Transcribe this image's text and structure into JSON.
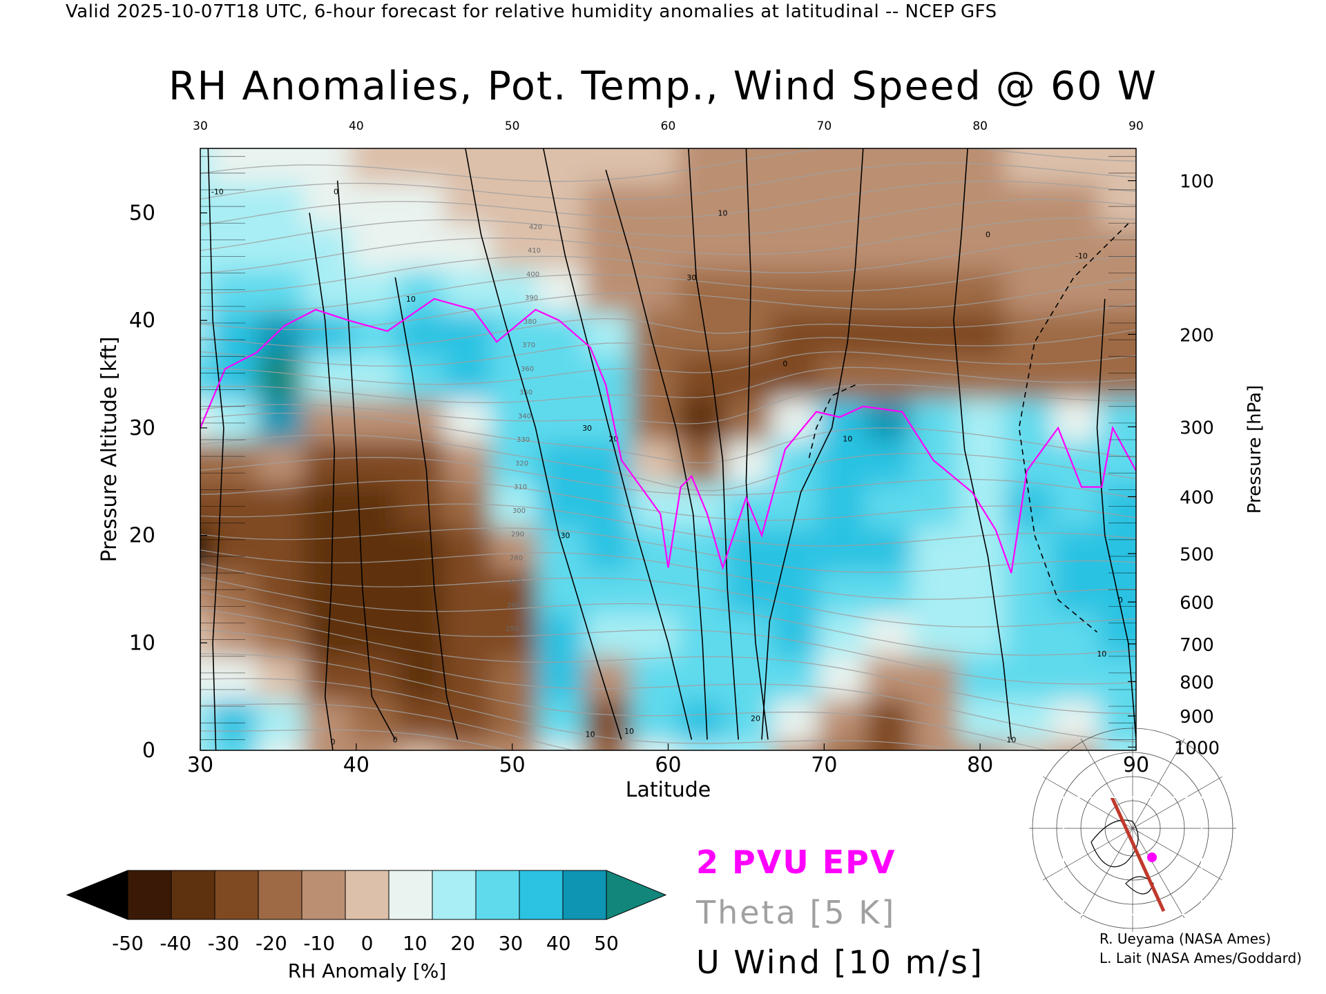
{
  "header": "Valid 2025-10-07T18 UTC, 6-hour forecast for relative humidity anomalies at latitudinal -- NCEP GFS",
  "chart_data": {
    "type": "heatmap",
    "title": "RH Anomalies, Pot. Temp., Wind Speed @ 60 W",
    "xlabel": "Latitude",
    "ylabel": "Pressure Altitude [kft]",
    "y2label": "Pressure [hPa]",
    "xlim": [
      30,
      90
    ],
    "ylim": [
      0,
      56
    ],
    "x_ticks": [
      "30",
      "40",
      "50",
      "60",
      "70",
      "80",
      "90"
    ],
    "y_ticks": [
      "0",
      "10",
      "20",
      "30",
      "40",
      "50"
    ],
    "pressure_ticks": [
      {
        "label": "100",
        "kft": 53.0
      },
      {
        "label": "200",
        "kft": 38.7
      },
      {
        "label": "300",
        "kft": 30.1
      },
      {
        "label": "400",
        "kft": 23.6
      },
      {
        "label": "500",
        "kft": 18.3
      },
      {
        "label": "600",
        "kft": 13.8
      },
      {
        "label": "700",
        "kft": 9.9
      },
      {
        "label": "800",
        "kft": 6.4
      },
      {
        "label": "900",
        "kft": 3.2
      },
      {
        "label": "1000",
        "kft": 0.3
      }
    ],
    "colorbar": {
      "label": "RH Anomaly [%]",
      "ticks": [
        "-50",
        "-40",
        "-30",
        "-20",
        "-10",
        "0",
        "10",
        "20",
        "30",
        "40",
        "50"
      ],
      "colors": [
        "#3a1a06",
        "#5e310f",
        "#7f4a22",
        "#9e6a45",
        "#bb8f72",
        "#dcc0aa",
        "#e9f3ef",
        "#a8eef4",
        "#5fdaed",
        "#2cc2e2",
        "#0f95b4"
      ],
      "under_color": "#000000",
      "over_color": "#12867a"
    },
    "legend": {
      "epv": "2 PVU EPV",
      "theta": "Theta [5 K]",
      "uwind": "U Wind [10 m/s]",
      "epv_color": "#ff00ff",
      "theta_color": "#a0a0a0",
      "uwind_color": "#000000"
    },
    "rh_field": {
      "note_values": "columns of RH anomaly (%) by latitude, listed bottom-to-top (0 to 56 kft)",
      "levels_kft": [
        0,
        4,
        8,
        12,
        16,
        20,
        24,
        28,
        32,
        36,
        40,
        44,
        48,
        52,
        56
      ],
      "columns": [
        {
          "lat": 30,
          "rh": [
            15,
            20,
            10,
            0,
            -10,
            -50,
            -35,
            -20,
            10,
            25,
            20,
            15,
            18,
            20,
            15
          ]
        },
        {
          "lat": 33,
          "rh": [
            25,
            35,
            5,
            -15,
            -25,
            -30,
            -30,
            -20,
            20,
            40,
            35,
            25,
            20,
            15,
            10
          ]
        },
        {
          "lat": 36,
          "rh": [
            10,
            20,
            -5,
            -25,
            -35,
            -30,
            -30,
            -15,
            45,
            50,
            45,
            30,
            20,
            15,
            10
          ]
        },
        {
          "lat": 39,
          "rh": [
            -10,
            -15,
            -30,
            -40,
            -40,
            -40,
            -40,
            -35,
            -15,
            20,
            35,
            20,
            15,
            10,
            5
          ]
        },
        {
          "lat": 42,
          "rh": [
            -10,
            -25,
            -35,
            -40,
            -40,
            -40,
            -40,
            -30,
            -10,
            15,
            30,
            20,
            10,
            5,
            0
          ]
        },
        {
          "lat": 45,
          "rh": [
            -5,
            -30,
            -40,
            -40,
            -40,
            -40,
            -35,
            -30,
            -10,
            25,
            35,
            25,
            10,
            5,
            0
          ]
        },
        {
          "lat": 48,
          "rh": [
            -10,
            -30,
            -35,
            -35,
            -35,
            -30,
            -20,
            -10,
            10,
            40,
            35,
            20,
            5,
            0,
            0
          ]
        },
        {
          "lat": 51,
          "rh": [
            -15,
            -20,
            -25,
            -30,
            -30,
            -15,
            20,
            30,
            25,
            30,
            30,
            15,
            0,
            0,
            0
          ]
        },
        {
          "lat": 54,
          "rh": [
            10,
            25,
            35,
            35,
            25,
            30,
            40,
            35,
            30,
            25,
            25,
            10,
            -5,
            -5,
            -5
          ]
        },
        {
          "lat": 57,
          "rh": [
            -25,
            -30,
            -15,
            15,
            25,
            35,
            40,
            40,
            30,
            25,
            15,
            -10,
            -10,
            -10,
            -5
          ]
        },
        {
          "lat": 60,
          "rh": [
            10,
            25,
            25,
            20,
            25,
            30,
            15,
            0,
            -25,
            -20,
            -20,
            -15,
            -15,
            -10,
            -5
          ]
        },
        {
          "lat": 63,
          "rh": [
            20,
            35,
            30,
            25,
            25,
            30,
            20,
            -20,
            -40,
            -35,
            -25,
            -20,
            -15,
            -10,
            -10
          ]
        },
        {
          "lat": 66,
          "rh": [
            20,
            30,
            25,
            30,
            40,
            35,
            30,
            10,
            -25,
            -35,
            -25,
            -20,
            -15,
            -15,
            -10
          ]
        },
        {
          "lat": 69,
          "rh": [
            -10,
            10,
            30,
            35,
            35,
            35,
            30,
            30,
            10,
            -30,
            -30,
            -20,
            -15,
            -15,
            -10
          ]
        },
        {
          "lat": 72,
          "rh": [
            -20,
            -15,
            10,
            20,
            25,
            35,
            35,
            40,
            40,
            -20,
            -30,
            -20,
            -15,
            -15,
            -10
          ]
        },
        {
          "lat": 75,
          "rh": [
            -35,
            -30,
            -10,
            5,
            25,
            35,
            30,
            40,
            45,
            -25,
            -30,
            -20,
            -15,
            -15,
            -10
          ]
        },
        {
          "lat": 78,
          "rh": [
            -10,
            -15,
            -10,
            15,
            20,
            20,
            30,
            30,
            30,
            -25,
            -30,
            -20,
            -15,
            -10,
            -10
          ]
        },
        {
          "lat": 81,
          "rh": [
            -10,
            15,
            25,
            20,
            15,
            15,
            15,
            20,
            15,
            -25,
            -30,
            -20,
            -15,
            -10,
            -10
          ]
        },
        {
          "lat": 84,
          "rh": [
            -5,
            20,
            30,
            30,
            25,
            25,
            35,
            30,
            25,
            -25,
            -25,
            -15,
            -15,
            -10,
            -5
          ]
        },
        {
          "lat": 87,
          "rh": [
            -10,
            10,
            25,
            30,
            35,
            35,
            30,
            25,
            10,
            -25,
            -20,
            -15,
            -10,
            -10,
            -5
          ]
        },
        {
          "lat": 90,
          "rh": [
            20,
            25,
            30,
            35,
            40,
            40,
            35,
            30,
            25,
            -20,
            -20,
            -15,
            -10,
            -5,
            -5
          ]
        }
      ]
    },
    "epv_line": {
      "name": "2 PVU EPV",
      "lat": [
        30,
        31.6,
        33.6,
        35.4,
        37.4,
        39.5,
        42.0,
        43.5,
        45.0,
        47.5,
        49.0,
        51.5,
        53.0,
        55.0,
        56.0,
        57.0,
        59.5,
        60.0,
        60.8,
        61.5,
        62.5,
        63.5,
        65.0,
        66.0,
        67.5,
        69.5,
        71.0,
        72.5,
        75.0,
        77.0,
        79.5,
        81.0,
        82.0,
        83.0,
        85.0,
        86.5,
        87.8,
        88.5,
        90.0
      ],
      "kft": [
        30,
        35.5,
        37.0,
        39.5,
        41.0,
        40.0,
        39.0,
        40.5,
        42.0,
        41.0,
        38.0,
        41.0,
        40.0,
        37.5,
        34.0,
        27.0,
        22.0,
        17.0,
        24.5,
        25.5,
        22.0,
        17.0,
        23.5,
        20.0,
        28.0,
        31.5,
        31.0,
        32.0,
        31.5,
        27.0,
        24.0,
        20.5,
        16.5,
        26.0,
        30.0,
        24.5,
        24.5,
        30.0,
        26.0
      ]
    },
    "uwind_labels": [
      "-10",
      "-10",
      "0",
      "0",
      "10",
      "10",
      "10",
      "20",
      "20",
      "30",
      "30",
      "30",
      "0",
      "0",
      "0",
      "10",
      "10",
      "0",
      "10",
      "10"
    ],
    "theta_labels": [
      "420",
      "410",
      "400",
      "390",
      "380",
      "370",
      "360",
      "350",
      "340",
      "330",
      "320",
      "310",
      "300",
      "290",
      "280",
      "270",
      "260",
      "250"
    ],
    "grid": false
  },
  "map_inset": {
    "alt": "polar stereographic locator map with cross-section line at 60 W"
  },
  "credits": [
    "R. Ueyama (NASA Ames)",
    "L. Lait (NASA Ames/Goddard)"
  ]
}
